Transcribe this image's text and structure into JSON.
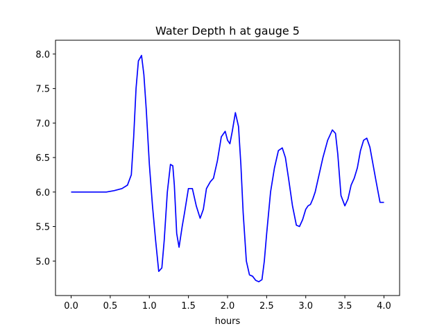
{
  "chart_data": {
    "type": "line",
    "title": "Water Depth h at gauge 5",
    "xlabel": "hours",
    "ylabel": "",
    "xlim": [
      -0.2,
      4.2
    ],
    "ylim": [
      4.5,
      8.2
    ],
    "xticks": [
      0.0,
      0.5,
      1.0,
      1.5,
      2.0,
      2.5,
      3.0,
      3.5,
      4.0
    ],
    "xtick_labels": [
      "0.0",
      "0.5",
      "1.0",
      "1.5",
      "2.0",
      "2.5",
      "3.0",
      "3.5",
      "4.0"
    ],
    "yticks": [
      5.0,
      5.5,
      6.0,
      6.5,
      7.0,
      7.5,
      8.0
    ],
    "ytick_labels": [
      "5.0",
      "5.5",
      "6.0",
      "6.5",
      "7.0",
      "7.5",
      "8.0"
    ],
    "grid": false,
    "series": [
      {
        "color": "#0000ff",
        "x": [
          0.0,
          0.2,
          0.45,
          0.55,
          0.65,
          0.72,
          0.77,
          0.8,
          0.83,
          0.86,
          0.9,
          0.93,
          0.96,
          1.0,
          1.04,
          1.08,
          1.12,
          1.16,
          1.19,
          1.23,
          1.27,
          1.3,
          1.32,
          1.35,
          1.38,
          1.42,
          1.45,
          1.5,
          1.55,
          1.6,
          1.65,
          1.69,
          1.73,
          1.78,
          1.82,
          1.87,
          1.92,
          1.97,
          2.0,
          2.03,
          2.06,
          2.1,
          2.14,
          2.17,
          2.2,
          2.24,
          2.28,
          2.32,
          2.36,
          2.4,
          2.44,
          2.47,
          2.5,
          2.55,
          2.6,
          2.65,
          2.7,
          2.74,
          2.78,
          2.83,
          2.88,
          2.92,
          2.96,
          3.0,
          3.03,
          3.06,
          3.09,
          3.12,
          3.17,
          3.22,
          3.28,
          3.34,
          3.38,
          3.41,
          3.45,
          3.5,
          3.54,
          3.58,
          3.62,
          3.66,
          3.7,
          3.74,
          3.78,
          3.82,
          3.86,
          3.9,
          3.95,
          4.0
        ],
        "y": [
          6.0,
          6.0,
          6.0,
          6.02,
          6.05,
          6.1,
          6.25,
          6.8,
          7.5,
          7.9,
          7.98,
          7.7,
          7.2,
          6.4,
          5.8,
          5.3,
          4.85,
          4.9,
          5.3,
          6.0,
          6.4,
          6.38,
          6.1,
          5.4,
          5.2,
          5.5,
          5.7,
          6.05,
          6.05,
          5.8,
          5.62,
          5.75,
          6.05,
          6.15,
          6.2,
          6.45,
          6.8,
          6.88,
          6.75,
          6.7,
          6.88,
          7.15,
          6.95,
          6.4,
          5.7,
          5.0,
          4.8,
          4.78,
          4.72,
          4.7,
          4.73,
          5.0,
          5.4,
          6.0,
          6.35,
          6.6,
          6.64,
          6.5,
          6.2,
          5.8,
          5.52,
          5.5,
          5.6,
          5.75,
          5.8,
          5.82,
          5.9,
          6.0,
          6.25,
          6.5,
          6.75,
          6.9,
          6.85,
          6.55,
          5.95,
          5.8,
          5.9,
          6.1,
          6.2,
          6.35,
          6.6,
          6.75,
          6.78,
          6.65,
          6.4,
          6.15,
          5.85,
          5.85
        ]
      }
    ]
  }
}
